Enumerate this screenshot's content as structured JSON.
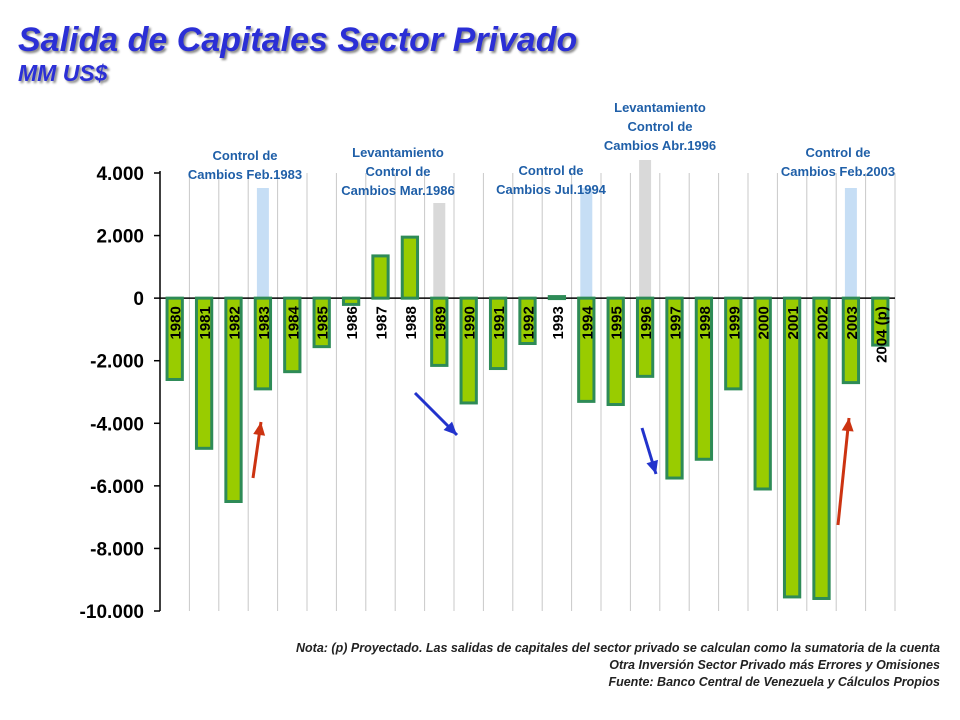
{
  "header": {
    "title": "Salida de Capitales Sector Privado",
    "subtitle": "MM US$"
  },
  "chart_data": {
    "type": "bar",
    "categories": [
      "1980",
      "1981",
      "1982",
      "1983",
      "1984",
      "1985",
      "1986",
      "1987",
      "1988",
      "1989",
      "1990",
      "1991",
      "1992",
      "1993",
      "1994",
      "1995",
      "1996",
      "1997",
      "1998",
      "1999",
      "2000",
      "2001",
      "2002",
      "2003",
      "2004 (p)"
    ],
    "values": [
      -2600,
      -4800,
      -6500,
      -2900,
      -2350,
      -1550,
      -200,
      1350,
      1950,
      -2150,
      -3350,
      -2250,
      -1450,
      50,
      -3300,
      -3400,
      -2500,
      -5750,
      -5150,
      -2900,
      -6100,
      -9550,
      -9600,
      -2700,
      -1500
    ],
    "ylim": [
      -10000,
      4000
    ],
    "yticks": [
      -10000,
      -8000,
      -6000,
      -4000,
      -2000,
      0,
      2000,
      4000
    ],
    "ytick_labels": [
      "-10.000",
      "-8.000",
      "-6.000",
      "-4.000",
      "-2.000",
      "0",
      "2.000",
      "4.000"
    ],
    "grid": "vertical",
    "colors": {
      "bar_fill": "#99cc00",
      "bar_border": "#2e8b57",
      "highlight_blue": "#c6def5",
      "highlight_gray": "#d9d9d9",
      "arrow_red": "#cc3311",
      "arrow_blue": "#2233cc",
      "annotation_text": "#1f5fa8"
    },
    "highlights": [
      {
        "year": "1983",
        "color": "blue"
      },
      {
        "year": "1989",
        "color": "gray"
      },
      {
        "year": "1994",
        "color": "blue"
      },
      {
        "year": "1996",
        "color": "gray"
      },
      {
        "year": "2003",
        "color": "blue"
      }
    ],
    "annotations": [
      {
        "year": "1983",
        "lines": [
          "Control de",
          "Cambios Feb.1983"
        ]
      },
      {
        "year": "1989",
        "lines": [
          "Levantamiento",
          "Control de",
          "Cambios Mar.1986"
        ]
      },
      {
        "year": "1994",
        "lines": [
          "Control de",
          "Cambios Jul.1994"
        ]
      },
      {
        "year": "1996",
        "lines": [
          "Levantamiento",
          "Control de",
          "Cambios Abr.1996"
        ]
      },
      {
        "year": "2003",
        "lines": [
          "Control de",
          "Cambios Feb.2003"
        ]
      }
    ],
    "arrows": [
      {
        "color": "red",
        "direction": "up",
        "near": "1983"
      },
      {
        "color": "blue",
        "direction": "down",
        "near": "1989"
      },
      {
        "color": "blue",
        "direction": "down",
        "near": "1997"
      },
      {
        "color": "red",
        "direction": "up",
        "near": "2003"
      }
    ]
  },
  "notes": {
    "line1": "Nota: (p) Proyectado. Las salidas de capitales del sector privado se calculan como la sumatoria de la cuenta",
    "line2": "Otra Inversión Sector Privado más Errores y Omisiones",
    "line3": "Fuente: Banco Central de Venezuela y Cálculos Propios"
  }
}
